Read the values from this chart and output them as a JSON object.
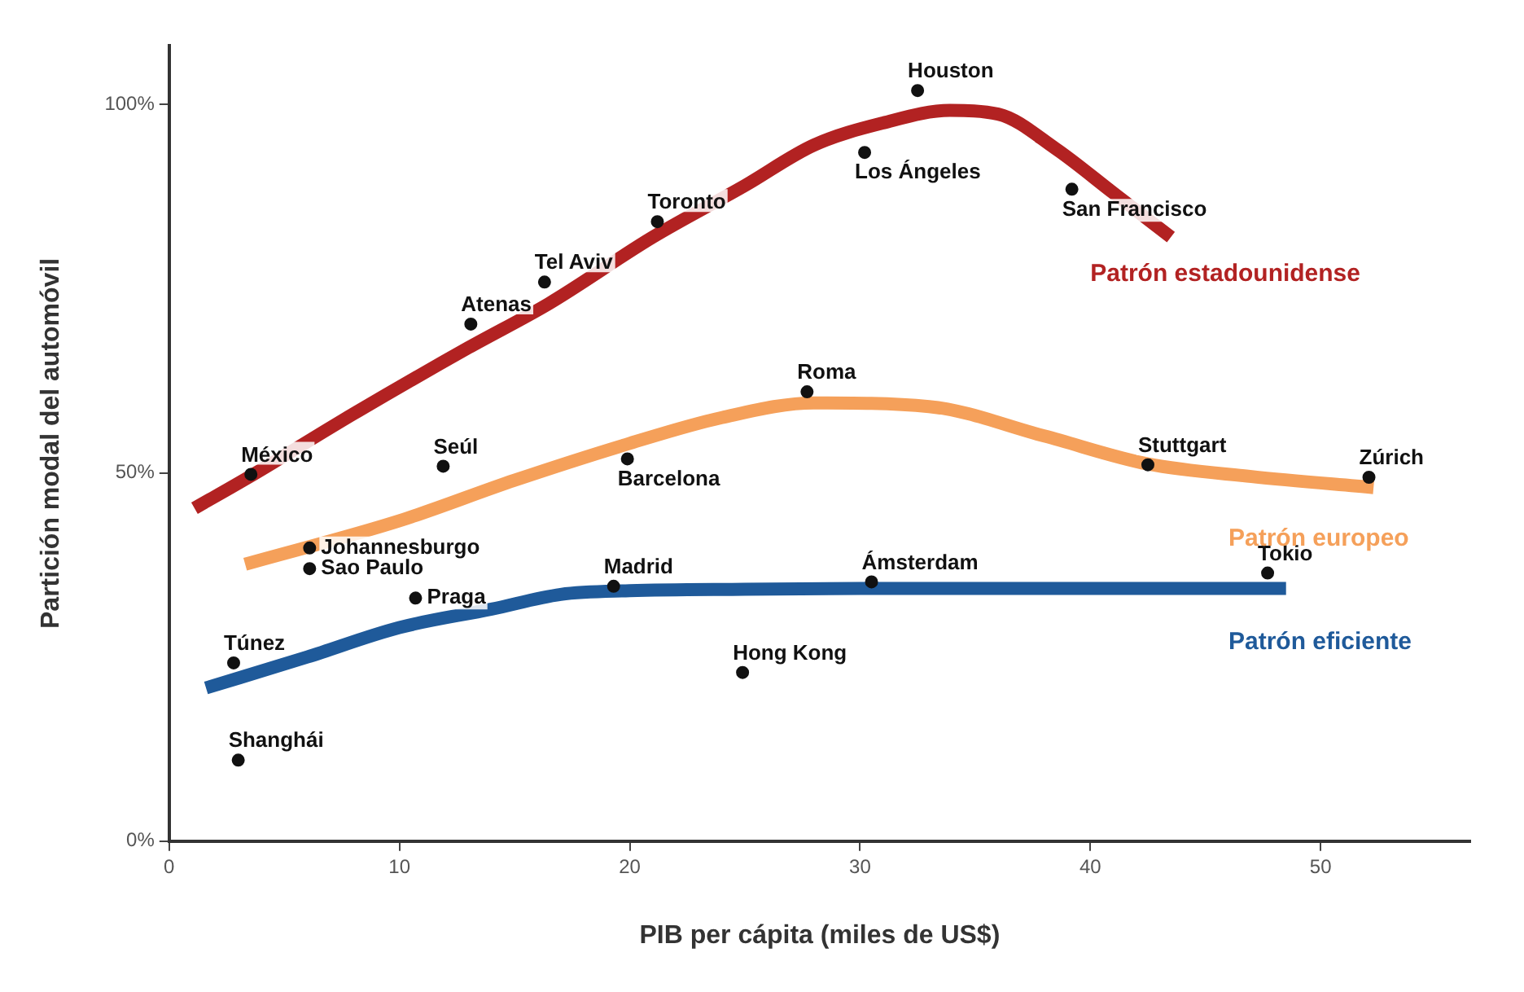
{
  "chart_data": {
    "type": "scatter",
    "xlabel": "PIB per cápita (miles de US$)",
    "ylabel": "Partición modal del automóvil",
    "xlim": [
      0,
      56.5
    ],
    "ylim": [
      0,
      108
    ],
    "xticks": [
      0,
      10,
      20,
      30,
      40,
      50
    ],
    "yticks": [
      {
        "value": 0,
        "label": "0%"
      },
      {
        "value": 50,
        "label": "50%"
      },
      {
        "value": 100,
        "label": "100%"
      }
    ],
    "grid": false,
    "legend": false,
    "marker": "circle",
    "series": [
      {
        "color": "#111111",
        "x": [
          3.55,
          11.9,
          19.9,
          13.1,
          16.3,
          21.2,
          27.7,
          32.5,
          30.2,
          39.2,
          42.5,
          52.1,
          6.1,
          6.1,
          10.7,
          19.3,
          2.8,
          3.0,
          24.9,
          30.5,
          47.7
        ],
        "values": [
          49.8,
          50.9,
          51.9,
          70.2,
          75.9,
          84.1,
          61,
          101.9,
          93.5,
          88.5,
          51.1,
          49.4,
          39.8,
          37.0,
          33.0,
          34.6,
          24.2,
          11.0,
          22.9,
          35.2,
          36.4
        ]
      },
      {
        "type": "line",
        "name": "Patrón estadounidense",
        "color": "#b22222",
        "marker": "none",
        "x": [
          1.1,
          3.5,
          8,
          13,
          16.5,
          21,
          25,
          28,
          31,
          33.9,
          36,
          38.5,
          41,
          43.5
        ],
        "values": [
          45.2,
          49.5,
          58,
          67,
          73,
          82,
          89,
          94.5,
          97.5,
          99.2,
          98.7,
          94,
          88,
          82
        ]
      },
      {
        "type": "line",
        "name": "Patrón europeo",
        "color": "#f5a05a",
        "marker": "none",
        "x": [
          3.3,
          10,
          15,
          20,
          24,
          28,
          33,
          38,
          42.5,
          47,
          52.3
        ],
        "values": [
          37.6,
          43.5,
          49,
          54,
          57.5,
          59.5,
          59,
          55,
          51.2,
          49.5,
          48
        ]
      },
      {
        "type": "line",
        "name": "Patrón eficiente",
        "color": "#1f5a9a",
        "marker": "none",
        "x": [
          1.6,
          6,
          10,
          14,
          17,
          20,
          25,
          30,
          40,
          48.5
        ],
        "values": [
          20.8,
          25,
          29,
          31.5,
          33.5,
          34,
          34.2,
          34.3,
          34.3,
          34.3
        ]
      }
    ],
    "annotations": [
      {
        "text": "México",
        "x": 3.55,
        "y": 49.8
      },
      {
        "text": "Seúl",
        "x": 11.9,
        "y": 50.9
      },
      {
        "text": "Barcelona",
        "x": 19.9,
        "y": 51.9
      },
      {
        "text": "Atenas",
        "x": 13.1,
        "y": 70.2
      },
      {
        "text": "Tel Aviv",
        "x": 16.3,
        "y": 75.9
      },
      {
        "text": "Toronto",
        "x": 21.2,
        "y": 84.1
      },
      {
        "text": "Roma",
        "x": 27.7,
        "y": 61
      },
      {
        "text": "Houston",
        "x": 32.5,
        "y": 101.9
      },
      {
        "text": "Los Ángeles",
        "x": 30.2,
        "y": 93.5
      },
      {
        "text": "San Francisco",
        "x": 39.2,
        "y": 88.5
      },
      {
        "text": "Stuttgart",
        "x": 42.5,
        "y": 51.1
      },
      {
        "text": "Zúrich",
        "x": 52.1,
        "y": 49.4
      },
      {
        "text": "Johannesburgo",
        "x": 6.1,
        "y": 39.8
      },
      {
        "text": "Sao Paulo",
        "x": 6.1,
        "y": 37.0
      },
      {
        "text": "Praga",
        "x": 10.7,
        "y": 33.0
      },
      {
        "text": "Madrid",
        "x": 19.3,
        "y": 34.6
      },
      {
        "text": "Túnez",
        "x": 2.8,
        "y": 24.2
      },
      {
        "text": "Shanghái",
        "x": 3.0,
        "y": 11.0
      },
      {
        "text": "Hong Kong",
        "x": 24.9,
        "y": 22.9
      },
      {
        "text": "Ámsterdam",
        "x": 30.5,
        "y": 35.2
      },
      {
        "text": "Tokio",
        "x": 47.7,
        "y": 36.4
      }
    ]
  }
}
